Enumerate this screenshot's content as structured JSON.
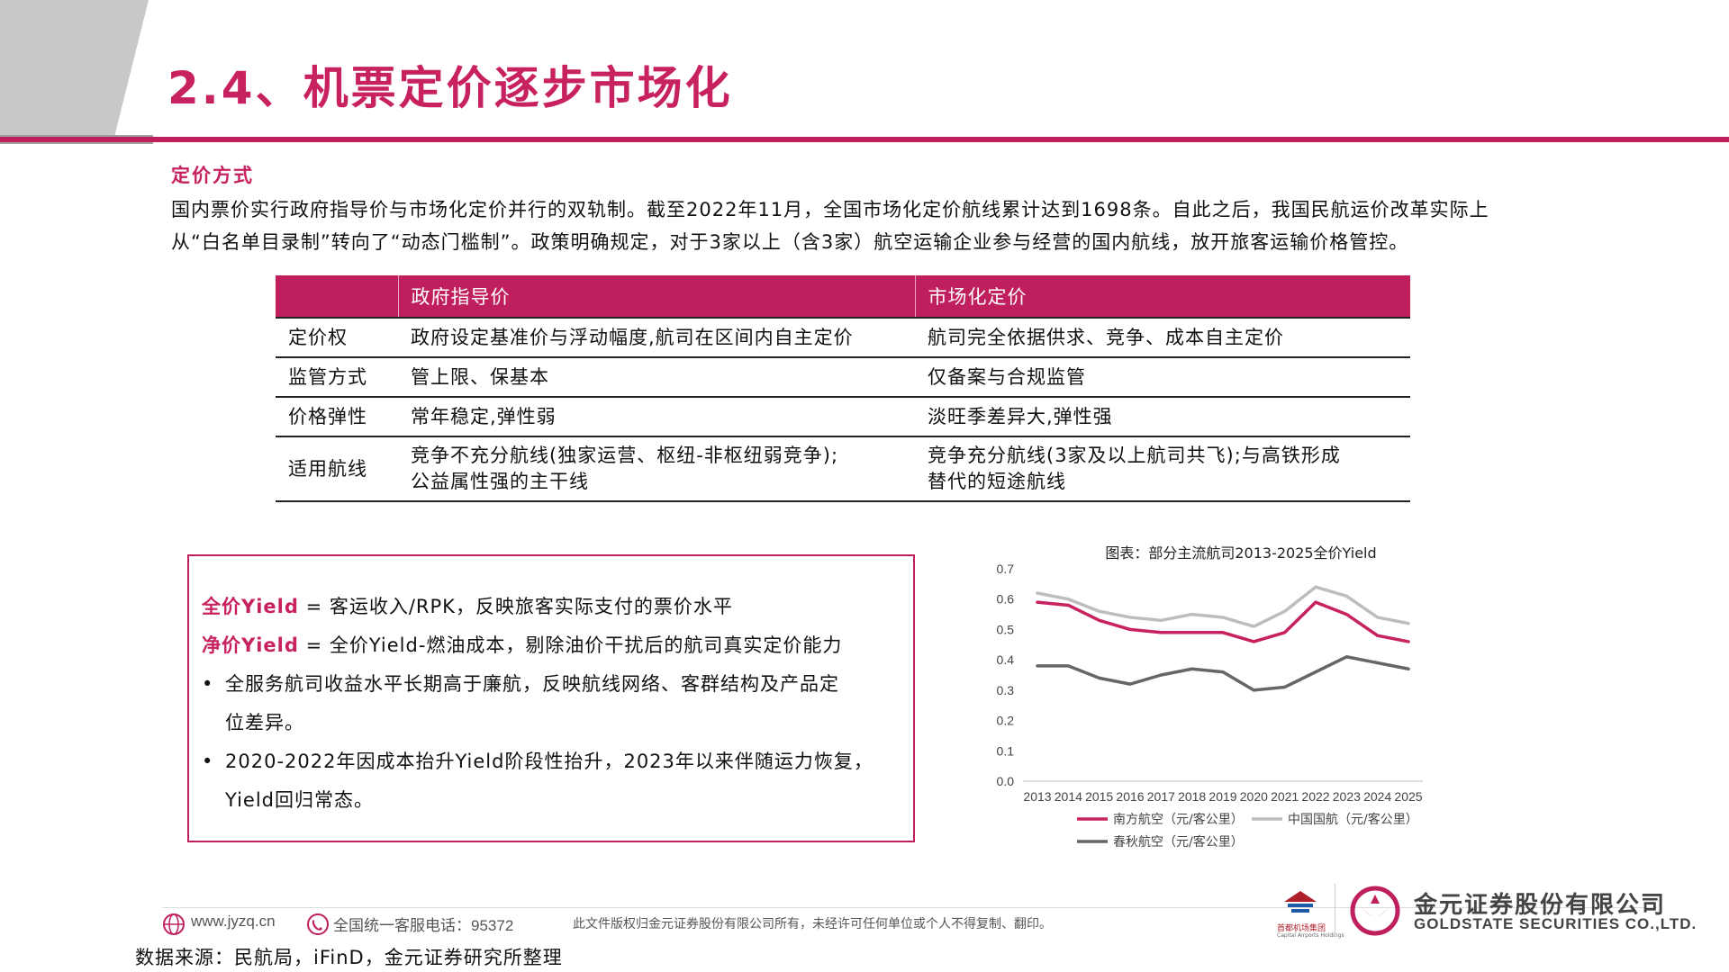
{
  "header": {
    "title": "2.4、机票定价逐步市场化"
  },
  "section": {
    "heading": "定价方式",
    "intro_lines": [
      "国内票价实行政府指导价与市场化定价并行的双轨制。截至2022年11月，全国市场化定价航线累计达到1698条。自此之后，我国民航运价改革实际上",
      "从“白名单目录制”转向了“动态门槛制”。政策明确规定，对于3家以上（含3家）航空运输企业参与经营的国内航线，放开旅客运输价格管控。"
    ]
  },
  "table": {
    "headers": [
      "",
      "政府指导价",
      "市场化定价"
    ],
    "rows": [
      {
        "label": "定价权",
        "gov": "政府设定基准价与浮动幅度,航司在区间内自主定价",
        "market": "航司完全依据供求、竞争、成本自主定价"
      },
      {
        "label": "监管方式",
        "gov": "管上限、保基本",
        "market": "仅备案与合规监管"
      },
      {
        "label": "价格弹性",
        "gov": "常年稳定,弹性弱",
        "market": "淡旺季差异大,弹性强"
      },
      {
        "label": "适用航线",
        "gov": "竞争不充分航线(独家运营、枢纽-非枢纽弱竞争);\n公益属性强的主干线",
        "market": "竞争充分航线(3家及以上航司共飞);与高铁形成\n替代的短途航线"
      }
    ]
  },
  "yield_box": {
    "full_term": "全价Yield",
    "full_def": " = 客运收入/RPK，反映旅客实际支付的票价水平",
    "net_term": "净价Yield",
    "net_def": " = 全价Yield-燃油成本，剔除油价干扰后的航司真实定价能力",
    "bullet_char": "•",
    "bullet1_line1": "全服务航司收益水平长期高于廉航，反映航线网络、客群结构及产品定",
    "bullet1_line2": "位差异。",
    "bullet2_line1": "2020-2022年因成本抬升Yield阶段性抬升，2023年以来伴随运力恢复，",
    "bullet2_line2": "Yield回归常态。"
  },
  "chart_data": {
    "type": "line",
    "title": "图表：部分主流航司2013-2025全价Yield",
    "x": [
      "2013",
      "2014",
      "2015",
      "2016",
      "2017",
      "2018",
      "2019",
      "2020",
      "2021",
      "2022",
      "2023",
      "2024",
      "2025"
    ],
    "y_ticks": [
      "0.0",
      "0.1",
      "0.2",
      "0.3",
      "0.4",
      "0.5",
      "0.6",
      "0.7"
    ],
    "ylim": [
      0,
      0.7
    ],
    "grid": false,
    "legend_position": "bottom",
    "series": [
      {
        "name": "南方航空（元/客公里）",
        "color": "#c8215f",
        "values": [
          0.59,
          0.58,
          0.53,
          0.5,
          0.49,
          0.49,
          0.49,
          0.46,
          0.49,
          0.59,
          0.55,
          0.48,
          0.46
        ]
      },
      {
        "name": "中国国航（元/客公里）",
        "color": "#bdbdbd",
        "values": [
          0.62,
          0.6,
          0.56,
          0.54,
          0.53,
          0.55,
          0.54,
          0.51,
          0.56,
          0.64,
          0.61,
          0.54,
          0.52
        ]
      },
      {
        "name": "春秋航空（元/客公里）",
        "color": "#666666",
        "values": [
          0.38,
          0.38,
          0.34,
          0.32,
          0.35,
          0.37,
          0.36,
          0.3,
          0.31,
          0.36,
          0.41,
          0.39,
          0.37
        ]
      }
    ]
  },
  "footer": {
    "website": "www.jyzq.cn",
    "hotline": "全国统一客服电话：95372",
    "notice": "此文件版权归金元证券股份有限公司所有，未经许可任何单位或个人不得复制、翻印。",
    "source": "数据来源：民航局，iFinD，金元证券研究所整理",
    "partner_cn": "首都机场集团",
    "partner_en": "Capital Airports Holdings",
    "company_cn": "金元证券股份有限公司",
    "company_en": "GOLDSTATE SECURITIES CO.,LTD."
  },
  "colors": {
    "accent": "#c01f5d",
    "corner_gray": "#c8c8c8"
  }
}
